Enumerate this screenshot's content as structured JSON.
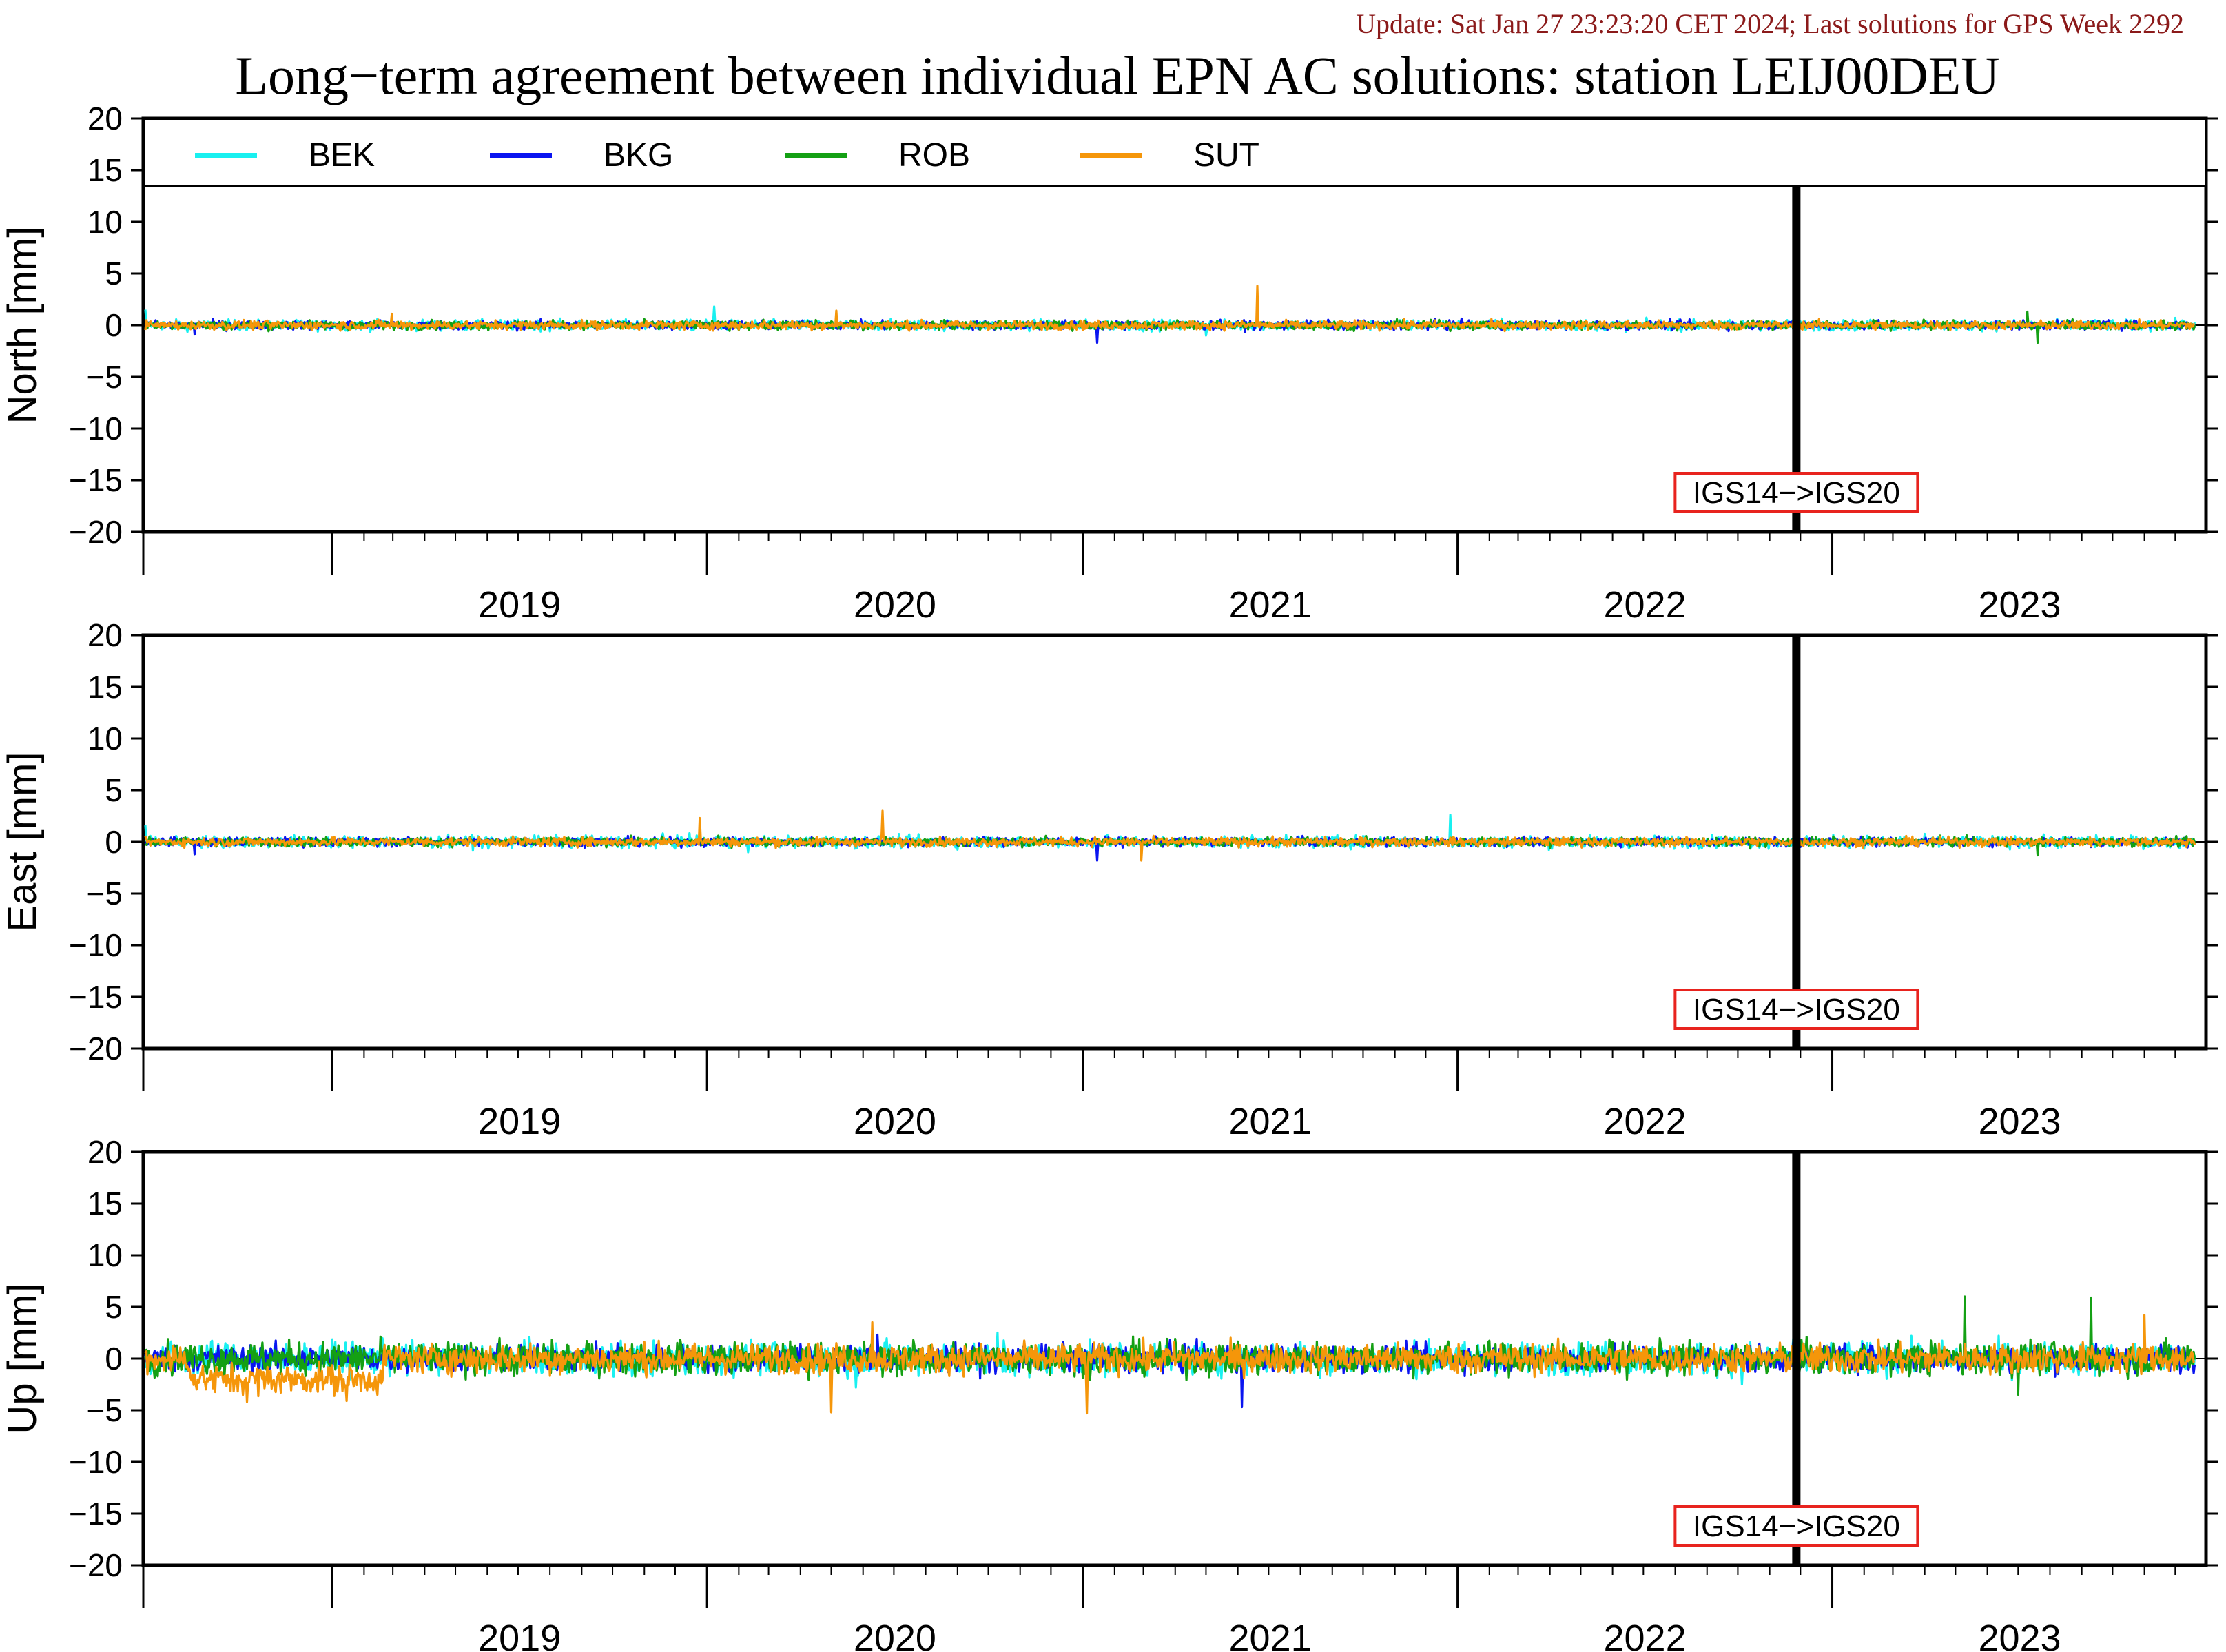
{
  "header": {
    "update_text": "Update: Sat Jan 27 23:23:20 CET 2024; Last solutions for GPS Week 2292",
    "title": "Long−term agreement between individual EPN AC solutions: station LEIJ00DEU"
  },
  "colors": {
    "update_text": "#8b1a1a",
    "marker_box": "#e8231e",
    "axis": "#000000"
  },
  "legend": {
    "placement": "top, inside first panel",
    "entries": [
      {
        "label": "BEK",
        "color": "#19f0f0"
      },
      {
        "label": "BKG",
        "color": "#0a14f0"
      },
      {
        "label": "ROB",
        "color": "#14a014"
      },
      {
        "label": "SUT",
        "color": "#f5960a"
      }
    ]
  },
  "chart_data": [
    {
      "type": "line",
      "panel": "north",
      "ylabel": "North [mm]",
      "ylim": [
        -20,
        20
      ],
      "yticks": [
        20,
        15,
        10,
        5,
        0,
        -5,
        -10,
        -15,
        -20
      ],
      "xlim": [
        "2018-07-01",
        "2023-12-31"
      ],
      "xtick_labels": [
        "2019",
        "2020",
        "2021",
        "2022",
        "2023"
      ],
      "zero_line": true,
      "grid": false,
      "change_marker": {
        "date": "2022-11-27",
        "label": "IGS14−>IGS20"
      },
      "series": [
        {
          "name": "BEK",
          "color": "#19f0f0",
          "noise_mm": 0.35,
          "spikes": [
            [
              "2018-07-03",
              1.5
            ],
            [
              "2020-01-08",
              1.8
            ],
            [
              "2021-05-01",
              -1.0
            ]
          ]
        },
        {
          "name": "BKG",
          "color": "#0a14f0",
          "noise_mm": 0.3,
          "spikes": [
            [
              "2018-08-20",
              -0.9
            ],
            [
              "2021-01-15",
              -1.7
            ]
          ]
        },
        {
          "name": "ROB",
          "color": "#14a014",
          "noise_mm": 0.3,
          "spikes": [
            [
              "2023-07-20",
              -1.7
            ],
            [
              "2023-07-10",
              1.3
            ]
          ]
        },
        {
          "name": "SUT",
          "color": "#f5960a",
          "noise_mm": 0.3,
          "spikes": [
            [
              "2021-06-20",
              3.8
            ],
            [
              "2020-05-06",
              1.4
            ],
            [
              "2019-02-28",
              1.1
            ]
          ]
        }
      ]
    },
    {
      "type": "line",
      "panel": "east",
      "ylabel": "East [mm]",
      "ylim": [
        -20,
        20
      ],
      "yticks": [
        20,
        15,
        10,
        5,
        0,
        -5,
        -10,
        -15,
        -20
      ],
      "xlim": [
        "2018-07-01",
        "2023-12-31"
      ],
      "xtick_labels": [
        "2019",
        "2020",
        "2021",
        "2022",
        "2023"
      ],
      "zero_line": true,
      "grid": false,
      "change_marker": {
        "date": "2022-11-27",
        "label": "IGS14−>IGS20"
      },
      "series": [
        {
          "name": "BEK",
          "color": "#19f0f0",
          "noise_mm": 0.4,
          "spikes": [
            [
              "2018-07-03",
              1.6
            ],
            [
              "2021-12-25",
              2.6
            ],
            [
              "2020-02-10",
              -1.0
            ]
          ]
        },
        {
          "name": "BKG",
          "color": "#0a14f0",
          "noise_mm": 0.3,
          "spikes": [
            [
              "2018-08-20",
              -1.2
            ],
            [
              "2021-01-15",
              -1.8
            ]
          ]
        },
        {
          "name": "ROB",
          "color": "#14a014",
          "noise_mm": 0.3,
          "spikes": [
            [
              "2023-07-20",
              -1.3
            ],
            [
              "2022-04-01",
              -0.6
            ]
          ]
        },
        {
          "name": "SUT",
          "color": "#f5960a",
          "noise_mm": 0.3,
          "spikes": [
            [
              "2019-12-25",
              2.3
            ],
            [
              "2020-06-20",
              3.0
            ],
            [
              "2021-02-27",
              -1.8
            ]
          ]
        }
      ]
    },
    {
      "type": "line",
      "panel": "up",
      "ylabel": "Up [mm]",
      "ylim": [
        -20,
        20
      ],
      "yticks": [
        20,
        15,
        10,
        5,
        0,
        -5,
        -10,
        -15,
        -20
      ],
      "xlim": [
        "2018-07-01",
        "2023-12-31"
      ],
      "xtick_labels": [
        "2019",
        "2020",
        "2021",
        "2022",
        "2023"
      ],
      "zero_line": true,
      "grid": false,
      "change_marker": {
        "date": "2022-11-27",
        "label": "IGS14−>IGS20"
      },
      "series": [
        {
          "name": "BEK",
          "color": "#19f0f0",
          "noise_mm": 1.1,
          "spikes": [
            [
              "2020-05-25",
              -2.8
            ],
            [
              "2020-10-10",
              2.5
            ],
            [
              "2022-10-05",
              -2.5
            ]
          ]
        },
        {
          "name": "BKG",
          "color": "#0a14f0",
          "noise_mm": 0.9,
          "spikes": [
            [
              "2021-06-05",
              -4.7
            ],
            [
              "2020-06-15",
              2.3
            ]
          ]
        },
        {
          "name": "ROB",
          "color": "#14a014",
          "noise_mm": 1.1,
          "spikes": [
            [
              "2023-05-10",
              6.0
            ],
            [
              "2023-09-10",
              5.9
            ],
            [
              "2023-07-01",
              -3.5
            ]
          ]
        },
        {
          "name": "SUT",
          "color": "#f5960a",
          "noise_mm": 1.0,
          "spikes": [
            [
              "2018-10-10",
              -4.2
            ],
            [
              "2019-01-15",
              -4.1
            ],
            [
              "2020-06-10",
              3.5
            ],
            [
              "2020-05-01",
              -5.2
            ],
            [
              "2021-01-05",
              -5.3
            ],
            [
              "2023-11-01",
              4.2
            ]
          ]
        }
      ]
    }
  ]
}
